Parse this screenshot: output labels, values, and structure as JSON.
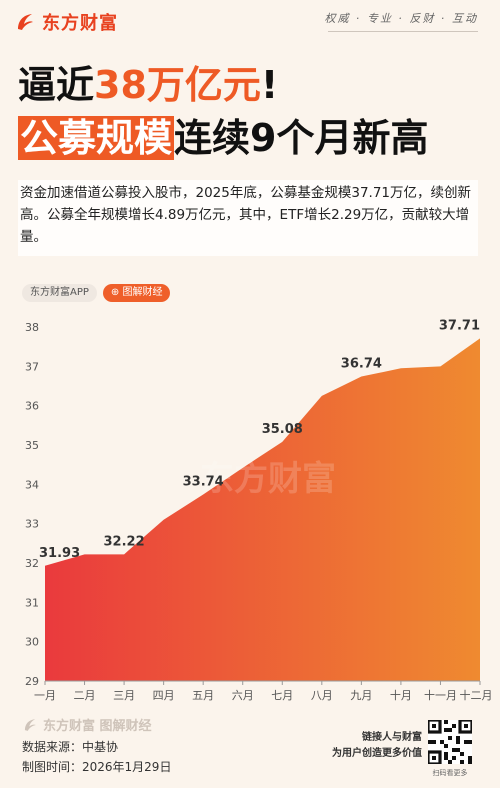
{
  "header": {
    "brand": "东方财富",
    "slogan": "权威 · 专业 · 反财 · 互动"
  },
  "headline": {
    "line1_pre": "逼近",
    "line1_highlight": "38万亿元",
    "line1_post": "!",
    "line2_highlight": "公募规模",
    "line2_post": "连续9个月新高"
  },
  "summary": "资金加速借道公募投入股市，2025年底，公募基金规模37.71万亿，续创新高。公募全年规模增长4.89万亿元，其中，ETF增长2.29万亿，贡献较大增量。",
  "tags": {
    "app": "东方财富APP",
    "category": "图解财经"
  },
  "chart_data": {
    "type": "area",
    "categories": [
      "一月",
      "二月",
      "三月",
      "四月",
      "五月",
      "六月",
      "七月",
      "八月",
      "九月",
      "十月",
      "十一月",
      "十二月"
    ],
    "values": [
      31.93,
      32.22,
      32.22,
      33.1,
      33.74,
      34.42,
      35.08,
      36.25,
      36.74,
      36.95,
      37.0,
      37.71
    ],
    "data_labels": [
      {
        "index": 0,
        "text": "31.93"
      },
      {
        "index": 2,
        "text": "32.22"
      },
      {
        "index": 4,
        "text": "33.74"
      },
      {
        "index": 6,
        "text": "35.08"
      },
      {
        "index": 8,
        "text": "36.74"
      },
      {
        "index": 11,
        "text": "37.71"
      }
    ],
    "yticks": [
      29,
      30,
      31,
      32,
      33,
      34,
      35,
      36,
      37,
      38
    ],
    "ylim": [
      29,
      38
    ],
    "grid": false,
    "colors": {
      "fill_start": "#ea3a3d",
      "fill_end": "#ef8a30"
    },
    "watermark": "东方财富"
  },
  "footer": {
    "logo": "东方财富 图解财经",
    "source": "数据来源：中基协",
    "date": "制图时间：2026年1月29日",
    "qr_line1": "链接人与财富",
    "qr_line2": "为用户创造更多价值",
    "qr_caption": "扫码看更多"
  }
}
